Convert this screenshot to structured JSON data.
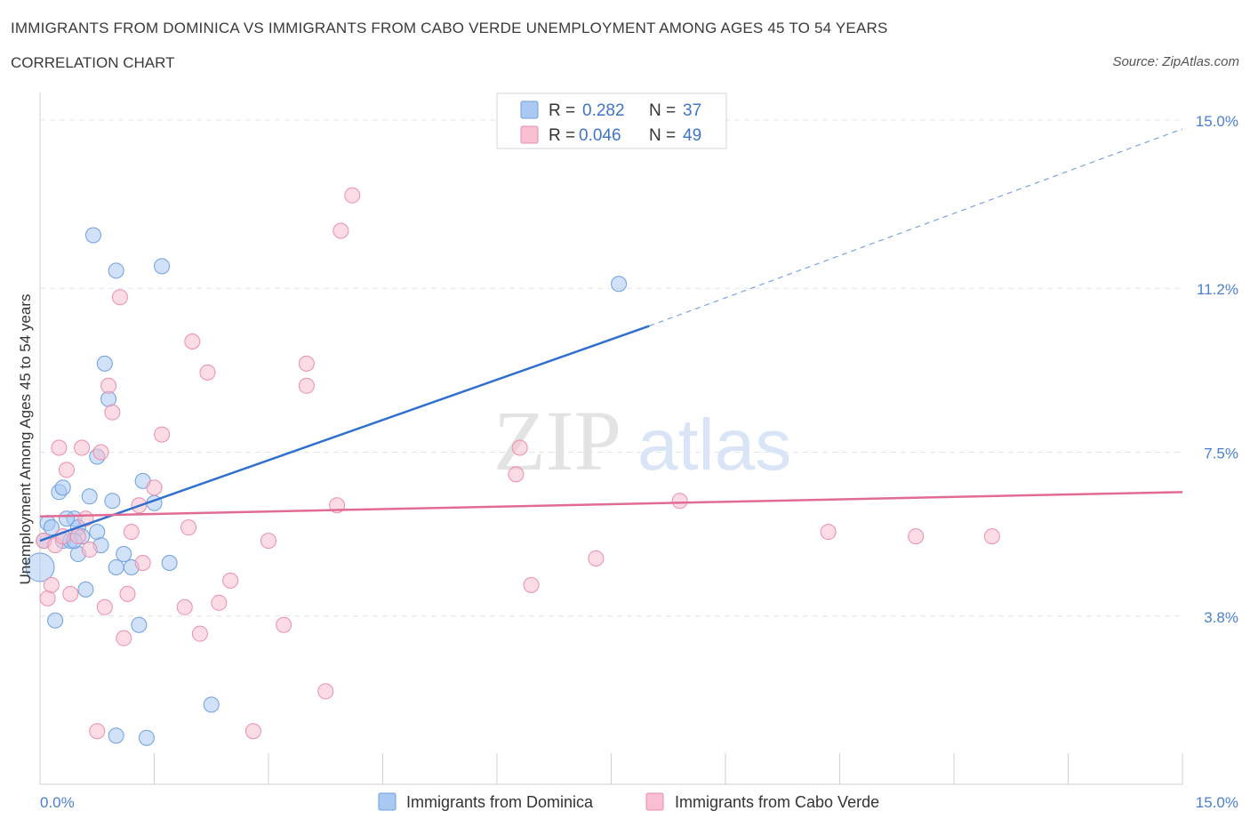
{
  "header": {
    "title": "IMMIGRANTS FROM DOMINICA VS IMMIGRANTS FROM CABO VERDE UNEMPLOYMENT AMONG AGES 45 TO 54 YEARS",
    "subtitle": "CORRELATION CHART",
    "source": "Source: ZipAtlas.com"
  },
  "watermark": {
    "zip": "ZIP",
    "atlas": "atlas"
  },
  "legend": {
    "r_label": "R =",
    "n_label": "N =",
    "items": [
      {
        "r": "0.282",
        "n": "37",
        "color": "#a9c8f2"
      },
      {
        "r": "0.046",
        "n": "49",
        "color": "#f7bfd0"
      }
    ]
  },
  "chart_data": {
    "type": "scatter",
    "xlabel": "",
    "ylabel": "Unemployment Among Ages 45 to 54 years",
    "xlim": [
      0,
      15
    ],
    "ylim": [
      0,
      15
    ],
    "x_tick_labels": [
      {
        "value": 0,
        "label": "0.0%"
      },
      {
        "value": 15,
        "label": "15.0%"
      }
    ],
    "y_tick_labels": [
      {
        "value": 3.8,
        "label": "3.8%"
      },
      {
        "value": 7.5,
        "label": "7.5%"
      },
      {
        "value": 11.2,
        "label": "11.2%"
      },
      {
        "value": 15.0,
        "label": "15.0%"
      }
    ],
    "grid": true,
    "series": [
      {
        "name": "Immigrants from Dominica",
        "color": "#a9c8f2",
        "stroke": "#6e9fe0",
        "trend": {
          "x0": 0.0,
          "y0": 5.5,
          "x1": 8.0,
          "y1": 10.35,
          "x_dash_end": 15.0,
          "y_dash_end": 14.8,
          "color": "#2f6fcf"
        },
        "points": [
          [
            0.0,
            4.9
          ],
          [
            0.1,
            5.9
          ],
          [
            0.2,
            3.7
          ],
          [
            0.25,
            6.6
          ],
          [
            0.3,
            6.7
          ],
          [
            0.3,
            5.5
          ],
          [
            0.4,
            5.5
          ],
          [
            0.45,
            6.0
          ],
          [
            0.5,
            5.8
          ],
          [
            0.5,
            5.2
          ],
          [
            0.55,
            5.6
          ],
          [
            0.6,
            4.4
          ],
          [
            0.65,
            6.5
          ],
          [
            0.7,
            12.4
          ],
          [
            0.75,
            7.4
          ],
          [
            0.75,
            5.7
          ],
          [
            0.8,
            5.4
          ],
          [
            0.85,
            9.5
          ],
          [
            0.9,
            8.7
          ],
          [
            0.95,
            6.4
          ],
          [
            1.0,
            4.9
          ],
          [
            1.0,
            1.1
          ],
          [
            1.0,
            11.6
          ],
          [
            1.1,
            5.2
          ],
          [
            1.2,
            4.9
          ],
          [
            1.3,
            3.6
          ],
          [
            1.35,
            6.85
          ],
          [
            1.4,
            1.05
          ],
          [
            1.5,
            6.35
          ],
          [
            1.6,
            11.7
          ],
          [
            1.7,
            5.0
          ],
          [
            2.25,
            1.8
          ],
          [
            7.6,
            11.3
          ],
          [
            0.15,
            5.8
          ],
          [
            0.35,
            6.0
          ],
          [
            0.45,
            5.5
          ],
          [
            0.05,
            5.5
          ]
        ]
      },
      {
        "name": "Immigrants from Cabo Verde",
        "color": "#f7bfd0",
        "stroke": "#ec8eab",
        "trend": {
          "x0": 0.0,
          "y0": 6.05,
          "x1": 15.0,
          "y1": 6.6,
          "color": "#e26b95"
        },
        "points": [
          [
            0.05,
            5.5
          ],
          [
            0.1,
            4.2
          ],
          [
            0.15,
            4.5
          ],
          [
            0.2,
            5.4
          ],
          [
            0.25,
            7.6
          ],
          [
            0.3,
            5.6
          ],
          [
            0.35,
            7.1
          ],
          [
            0.4,
            4.3
          ],
          [
            0.5,
            5.6
          ],
          [
            0.55,
            7.6
          ],
          [
            0.6,
            6.0
          ],
          [
            0.65,
            5.3
          ],
          [
            0.75,
            1.2
          ],
          [
            0.8,
            7.5
          ],
          [
            0.85,
            4.0
          ],
          [
            0.9,
            9.0
          ],
          [
            0.95,
            8.4
          ],
          [
            1.05,
            11.0
          ],
          [
            1.1,
            3.3
          ],
          [
            1.15,
            4.3
          ],
          [
            1.2,
            5.7
          ],
          [
            1.3,
            6.3
          ],
          [
            1.35,
            5.0
          ],
          [
            1.5,
            6.7
          ],
          [
            1.6,
            7.9
          ],
          [
            1.9,
            4.0
          ],
          [
            1.95,
            5.8
          ],
          [
            2.0,
            10.0
          ],
          [
            2.1,
            3.4
          ],
          [
            2.2,
            9.3
          ],
          [
            2.35,
            4.1
          ],
          [
            2.5,
            4.6
          ],
          [
            2.8,
            1.2
          ],
          [
            3.0,
            5.5
          ],
          [
            3.2,
            3.6
          ],
          [
            3.5,
            9.5
          ],
          [
            3.5,
            9.0
          ],
          [
            3.75,
            2.1
          ],
          [
            3.9,
            6.3
          ],
          [
            3.95,
            12.5
          ],
          [
            4.1,
            13.3
          ],
          [
            6.3,
            7.6
          ],
          [
            6.25,
            7.0
          ],
          [
            6.45,
            4.5
          ],
          [
            7.3,
            5.1
          ],
          [
            8.4,
            6.4
          ],
          [
            10.35,
            5.7
          ],
          [
            11.5,
            5.6
          ],
          [
            12.5,
            5.6
          ]
        ]
      }
    ]
  }
}
